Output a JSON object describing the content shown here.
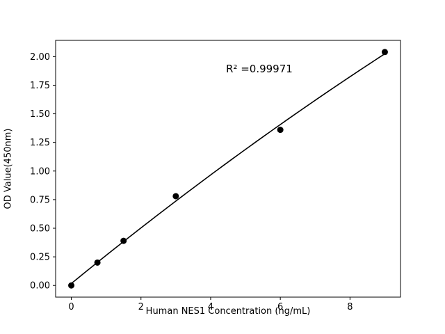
{
  "chart_data": {
    "type": "scatter",
    "title": "",
    "xlabel": "Human NES1 Concentration (ng/mL)",
    "ylabel": "OD Value(450nm)",
    "annotation": "R² =0.99971",
    "x": [
      0,
      0.75,
      1.5,
      3,
      6,
      9
    ],
    "y": [
      0.0,
      0.2,
      0.39,
      0.78,
      1.36,
      2.04
    ],
    "fit": "quadratic",
    "xlim": [
      -0.45,
      9.45
    ],
    "ylim": [
      -0.102,
      2.142
    ],
    "xticks": [
      0,
      2,
      4,
      6,
      8
    ],
    "yticks": [
      0.0,
      0.25,
      0.5,
      0.75,
      1.0,
      1.25,
      1.5,
      1.75,
      2.0
    ],
    "grid": false,
    "legend": null,
    "marker_color": "#000000",
    "line_color": "#000000",
    "background_color": "#ffffff"
  }
}
